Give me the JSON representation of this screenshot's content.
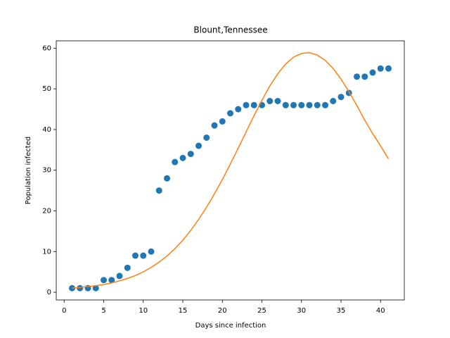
{
  "chart_data": {
    "type": "scatter",
    "title": "Blount,Tennessee",
    "x_label": "Days since infection",
    "y_label": "Population infected",
    "x": [
      1,
      2,
      3,
      4,
      5,
      6,
      7,
      8,
      9,
      10,
      11,
      12,
      13,
      14,
      15,
      16,
      17,
      18,
      19,
      20,
      21,
      22,
      23,
      24,
      25,
      26,
      27,
      28,
      29,
      30,
      31,
      32,
      33,
      34,
      35,
      36,
      37,
      38,
      39,
      40,
      41
    ],
    "series": [
      {
        "style": "markers",
        "color": "#1f77b4",
        "values": [
          1,
          1,
          1,
          1,
          3,
          3,
          4,
          6,
          9,
          9,
          10,
          25,
          28,
          32,
          33,
          34,
          36,
          38,
          41,
          42,
          44,
          45,
          46,
          46,
          46,
          47,
          47,
          46,
          46,
          46,
          46,
          46,
          46,
          47,
          48,
          49,
          53,
          53,
          54,
          55,
          55
        ]
      },
      {
        "style": "line",
        "color": "#ff7f0e",
        "values": [
          1.0,
          1.2,
          1.4,
          1.6,
          1.9,
          2.3,
          2.8,
          3.4,
          4.1,
          5.0,
          6.1,
          7.4,
          8.9,
          10.7,
          12.8,
          15.2,
          17.9,
          20.9,
          24.2,
          27.7,
          31.5,
          35.4,
          39.4,
          43.4,
          47.2,
          50.7,
          53.7,
          56.1,
          57.8,
          58.7,
          58.9,
          58.3,
          57.0,
          55.0,
          52.4,
          49.3,
          45.9,
          42.3,
          39.0,
          36.0,
          32.8
        ]
      }
    ],
    "xlim": [
      -1,
      43
    ],
    "ylim": [
      -1.9,
      61.8
    ],
    "xticks": [
      0,
      5,
      10,
      15,
      20,
      25,
      30,
      35,
      40
    ],
    "yticks": [
      0,
      10,
      20,
      30,
      40,
      50,
      60
    ],
    "grid": false
  }
}
